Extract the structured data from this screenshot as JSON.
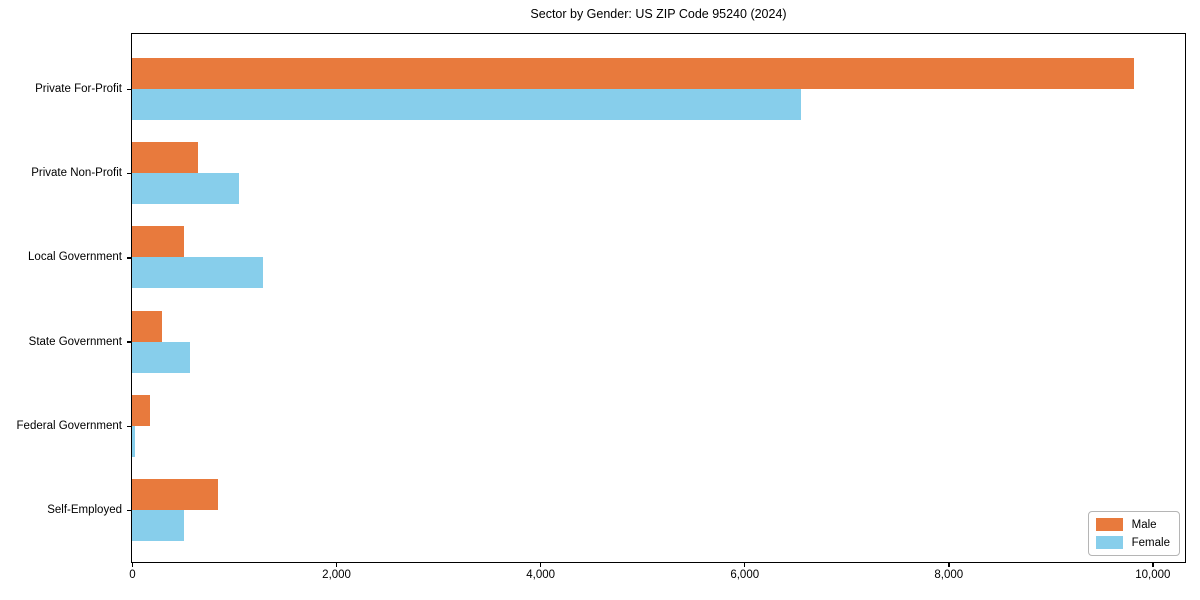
{
  "chart_data": {
    "type": "bar",
    "orientation": "horizontal",
    "title": "Sector by Gender: US ZIP Code 95240 (2024)",
    "categories": [
      "Private For-Profit",
      "Private Non-Profit",
      "Local Government",
      "State Government",
      "Federal Government",
      "Self-Employed"
    ],
    "series": [
      {
        "name": "Male",
        "color": "#E87A3D",
        "values": [
          9820,
          650,
          510,
          295,
          175,
          840
        ]
      },
      {
        "name": "Female",
        "color": "#87CEEB",
        "values": [
          6560,
          1050,
          1280,
          570,
          30,
          510
        ]
      }
    ],
    "xlabel": "",
    "ylabel": "",
    "xlim": [
      0,
      10310
    ],
    "x_ticks": [
      0,
      2000,
      4000,
      6000,
      8000,
      10000
    ],
    "x_tick_labels": [
      "0",
      "2,000",
      "4,000",
      "6,000",
      "8,000",
      "10,000"
    ],
    "grid": false,
    "legend_position": "lower-right",
    "axis_color": "#000000",
    "background_color": "#ffffff"
  }
}
